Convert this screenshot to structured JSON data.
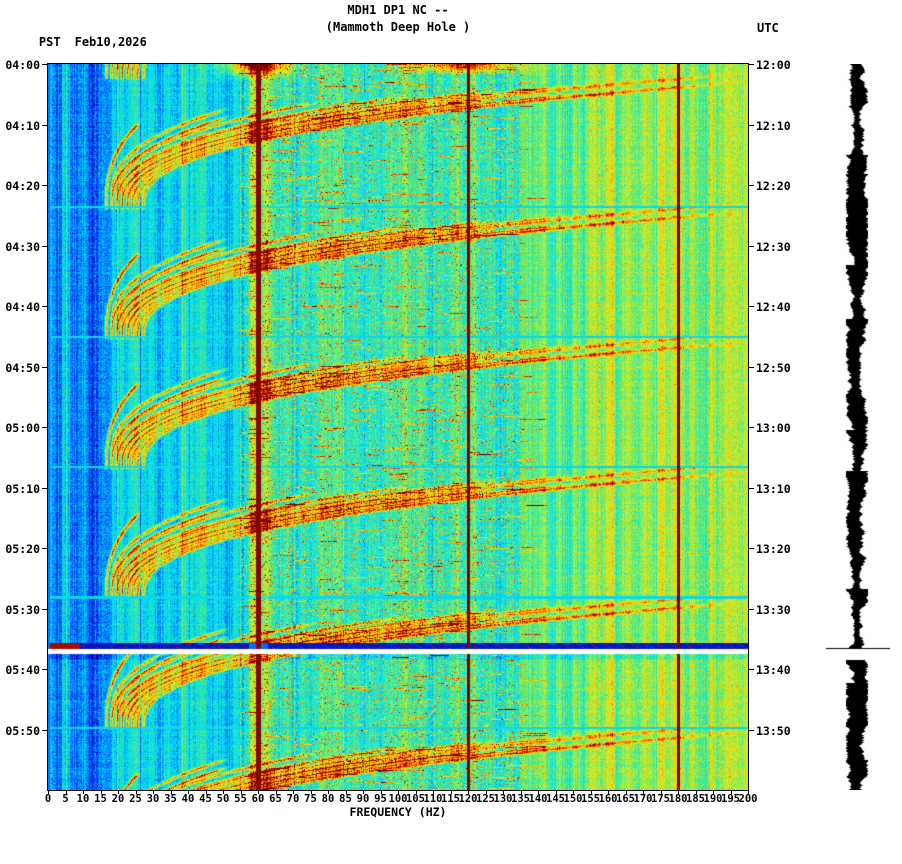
{
  "header": {
    "title_line1": "MDH1 DP1 NC --",
    "title_line2": "(Mammoth Deep Hole )",
    "left_label": "PST",
    "date_label": "Feb10,2026",
    "right_label": "UTC"
  },
  "axes": {
    "pst_ticks": [
      "04:00",
      "04:10",
      "04:20",
      "04:30",
      "04:40",
      "04:50",
      "05:00",
      "05:10",
      "05:20",
      "05:30",
      "05:40",
      "05:50"
    ],
    "utc_ticks": [
      "12:00",
      "12:10",
      "12:20",
      "12:30",
      "12:40",
      "12:50",
      "13:00",
      "13:10",
      "13:20",
      "13:30",
      "13:40",
      "13:50"
    ],
    "freq_ticks": [
      0,
      5,
      10,
      15,
      20,
      25,
      30,
      35,
      40,
      45,
      50,
      55,
      60,
      65,
      70,
      75,
      80,
      85,
      90,
      95,
      100,
      105,
      110,
      115,
      120,
      125,
      130,
      135,
      140,
      145,
      150,
      155,
      160,
      165,
      170,
      175,
      180,
      185,
      190,
      195,
      200
    ],
    "freq_axis_label": "FREQUENCY (HZ)"
  },
  "chart_data": {
    "type": "heatmap",
    "title": "MDH1 DP1 NC -- (Mammoth Deep Hole )",
    "xlabel": "FREQUENCY (HZ)",
    "x_range_hz": [
      0,
      200
    ],
    "x_tick_step_hz": 5,
    "time_start_pst": "04:00",
    "time_end_pst": "06:00",
    "time_start_utc": "12:00",
    "time_end_utc": "14:00",
    "duration_minutes": 120,
    "tick_interval_minutes": 10,
    "powerline_harmonics_hz": [
      60,
      120,
      180
    ],
    "event_end_minutes": [
      2.1,
      23.6,
      45.1,
      66.6,
      88.1,
      109.6,
      131.1
    ],
    "event_period_minutes": 21.5,
    "harmonics": 8,
    "harmonic_spacing_hz": 26,
    "data_gap_minutes": [
      95.7,
      97.5
    ],
    "colormap": "jet",
    "colormap_stops": [
      [
        0.0,
        [
          0,
          0,
          170
        ]
      ],
      [
        0.13,
        [
          0,
          80,
          255
        ]
      ],
      [
        0.28,
        [
          0,
          210,
          255
        ]
      ],
      [
        0.42,
        [
          40,
          235,
          180
        ]
      ],
      [
        0.52,
        [
          140,
          235,
          80
        ]
      ],
      [
        0.62,
        [
          225,
          235,
          30
        ]
      ],
      [
        0.72,
        [
          255,
          190,
          0
        ]
      ],
      [
        0.82,
        [
          255,
          90,
          0
        ]
      ],
      [
        0.9,
        [
          215,
          25,
          0
        ]
      ],
      [
        1.0,
        [
          110,
          0,
          0
        ]
      ]
    ],
    "legend": "none",
    "grid": false
  }
}
